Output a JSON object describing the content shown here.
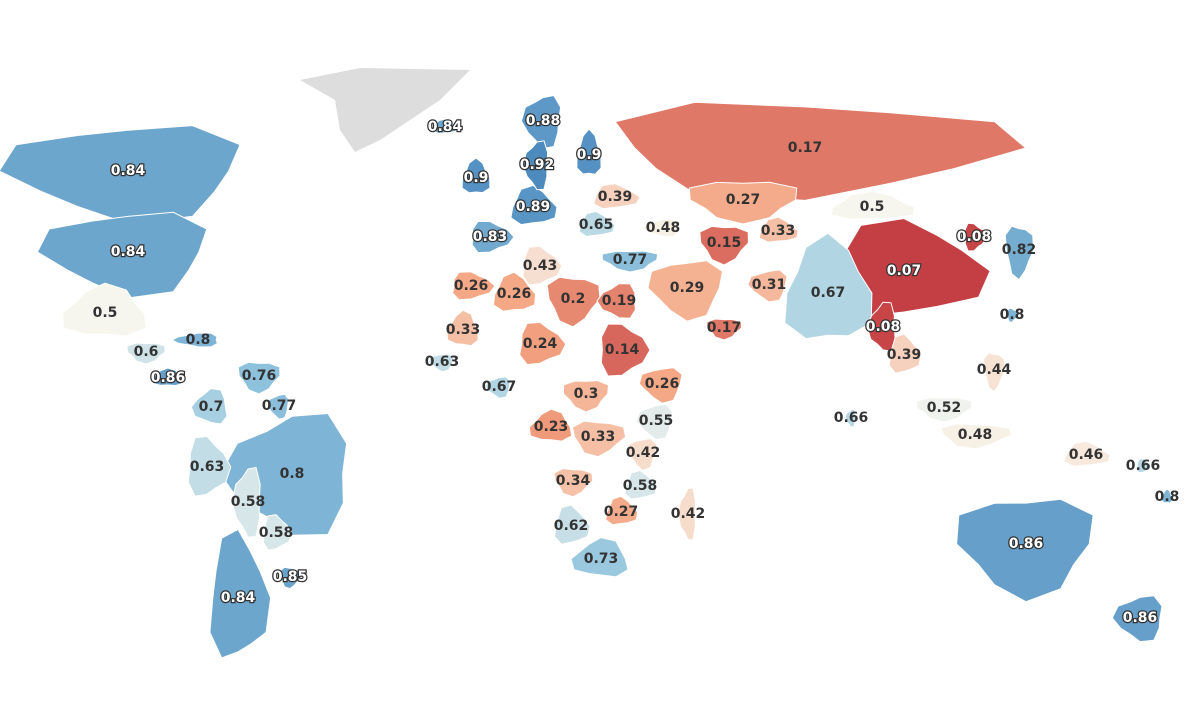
{
  "chart_data": {
    "type": "choropleth",
    "colors": [
      "#b2182b",
      "#f4a582",
      "#f7f6ee",
      "#92c5de",
      "#2c6fb0"
    ],
    "no_data_color": "#dddddd",
    "values": [
      0.84,
      0.84,
      0.84,
      0.88,
      0.9,
      0.92,
      0.9,
      0.89,
      0.39,
      0.83,
      0.65,
      0.48,
      0.17,
      0.27,
      0.5,
      0.33,
      0.15,
      0.08,
      0.82,
      0.07,
      0.77,
      0.43,
      0.26,
      0.26,
      0.2,
      0.19,
      0.29,
      0.31,
      0.67,
      0.17,
      0.8,
      0.08,
      0.39,
      0.33,
      0.24,
      0.14,
      0.63,
      0.67,
      0.3,
      0.26,
      0.44,
      0.52,
      0.66,
      0.48,
      0.55,
      0.23,
      0.33,
      0.42,
      0.46,
      0.66,
      0.8,
      0.34,
      0.58,
      0.27,
      0.42,
      0.62,
      0.73,
      0.86,
      0.86,
      0.5,
      0.6,
      0.8,
      0.86,
      0.76,
      0.7,
      0.77,
      0.63,
      0.8,
      0.58,
      0.58,
      0.85,
      0.84
    ]
  }
}
